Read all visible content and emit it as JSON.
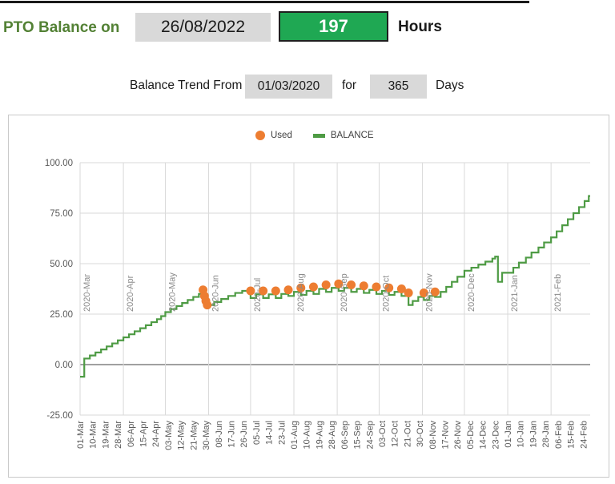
{
  "header": {
    "title_label": "PTO Balance on",
    "date_value": "26/08/2022",
    "balance_value": "197",
    "unit_label": "Hours"
  },
  "trend_controls": {
    "prefix_label": "Balance Trend From",
    "start_date_value": "01/03/2020",
    "middle_label": "for",
    "days_value": "365",
    "suffix_label": "Days"
  },
  "colors": {
    "title_green": "#538135",
    "cell_gray": "#d9d9d9",
    "value_box_green": "#1fa853",
    "value_box_text": "#ffffff",
    "balance_line_green": "#4e9b44",
    "used_dot_orange": "#ed7d31",
    "gridline": "#d9d9d9",
    "zero_axis": "#808080",
    "axis_text": "#595959",
    "month_text": "#8a8a8a",
    "chart_border": "#c9c9c9"
  },
  "chart_data": {
    "type": "line",
    "title": "",
    "legend": [
      {
        "label": "Used",
        "marker": "circle",
        "color": "#ed7d31"
      },
      {
        "label": "BALANCE",
        "marker": "dash",
        "color": "#4e9b44"
      }
    ],
    "legend_position": "top-center",
    "grid": true,
    "y_axis": {
      "min": -25,
      "max": 100,
      "step": 25,
      "ticks": [
        {
          "v": 100,
          "label": "100.00"
        },
        {
          "v": 75,
          "label": "75.00"
        },
        {
          "v": 50,
          "label": "50.00"
        },
        {
          "v": 25,
          "label": "25.00"
        },
        {
          "v": 0,
          "label": "0.00"
        },
        {
          "v": -25,
          "label": "-25.00"
        }
      ]
    },
    "x_axis": {
      "total_days": 365,
      "tick_interval_days": 9,
      "tick_labels": [
        "01-Mar",
        "10-Mar",
        "19-Mar",
        "28-Mar",
        "06-Apr",
        "15-Apr",
        "24-Apr",
        "03-May",
        "12-May",
        "21-May",
        "30-May",
        "08-Jun",
        "17-Jun",
        "26-Jun",
        "05-Jul",
        "14-Jul",
        "23-Jul",
        "01-Aug",
        "10-Aug",
        "19-Aug",
        "28-Aug",
        "06-Sep",
        "15-Sep",
        "24-Sep",
        "03-Oct",
        "12-Oct",
        "21-Oct",
        "30-Oct",
        "08-Nov",
        "17-Nov",
        "26-Nov",
        "05-Dec",
        "14-Dec",
        "23-Dec",
        "01-Jan",
        "10-Jan",
        "19-Jan",
        "28-Jan",
        "06-Feb",
        "15-Feb",
        "24-Feb"
      ],
      "month_labels": [
        "2020-Mar",
        "2020-Apr",
        "2020-May",
        "2020-Jun",
        "2020-Jul",
        "2020-Aug",
        "2020-Sep",
        "2020-Oct",
        "2020-Nov",
        "2020-Dec",
        "2021-Jan",
        "2021-Feb"
      ],
      "month_start_days": [
        0,
        31,
        61,
        92,
        122,
        153,
        184,
        214,
        245,
        275,
        306,
        337
      ]
    },
    "series": [
      {
        "name": "BALANCE",
        "type": "step-line",
        "color": "#4e9b44",
        "points": [
          [
            0,
            -6
          ],
          [
            3,
            3
          ],
          [
            7,
            4.5
          ],
          [
            11,
            6
          ],
          [
            15,
            7.5
          ],
          [
            19,
            9
          ],
          [
            23,
            10.5
          ],
          [
            27,
            12
          ],
          [
            31,
            13.5
          ],
          [
            35,
            15
          ],
          [
            39,
            16.5
          ],
          [
            43,
            18
          ],
          [
            47,
            19.5
          ],
          [
            51,
            21
          ],
          [
            55,
            22.5
          ],
          [
            58,
            24
          ],
          [
            61,
            26
          ],
          [
            65,
            27.5
          ],
          [
            69,
            29
          ],
          [
            73,
            30.5
          ],
          [
            77,
            32
          ],
          [
            81,
            33.5
          ],
          [
            85,
            35
          ],
          [
            88,
            37
          ],
          [
            89,
            34
          ],
          [
            90,
            31.5
          ],
          [
            91,
            29.5
          ],
          [
            96,
            31
          ],
          [
            101,
            32.5
          ],
          [
            106,
            34
          ],
          [
            111,
            35.5
          ],
          [
            116,
            36.5
          ],
          [
            122,
            33
          ],
          [
            126,
            34.8
          ],
          [
            130,
            36.5
          ],
          [
            131,
            33
          ],
          [
            135,
            34.8
          ],
          [
            139,
            36.5
          ],
          [
            140,
            33
          ],
          [
            144,
            35
          ],
          [
            148,
            37
          ],
          [
            149,
            34
          ],
          [
            153,
            36
          ],
          [
            157,
            38
          ],
          [
            158,
            34.5
          ],
          [
            162,
            36.5
          ],
          [
            166,
            38.5
          ],
          [
            167,
            35
          ],
          [
            171,
            37.5
          ],
          [
            175,
            39.5
          ],
          [
            176,
            36
          ],
          [
            180,
            38
          ],
          [
            184,
            40
          ],
          [
            185,
            36.5
          ],
          [
            189,
            38
          ],
          [
            193,
            39.5
          ],
          [
            194,
            36
          ],
          [
            198,
            37.5
          ],
          [
            202,
            39
          ],
          [
            203,
            35.5
          ],
          [
            207,
            37
          ],
          [
            211,
            38.5
          ],
          [
            212,
            35
          ],
          [
            216,
            36.5
          ],
          [
            220,
            38
          ],
          [
            221,
            34.5
          ],
          [
            225,
            36
          ],
          [
            229,
            37.5
          ],
          [
            230,
            34
          ],
          [
            234,
            35.5
          ],
          [
            235,
            29.5
          ],
          [
            238,
            31.5
          ],
          [
            242,
            33.5
          ],
          [
            245,
            35.5
          ],
          [
            246,
            32
          ],
          [
            250,
            34
          ],
          [
            253,
            36
          ],
          [
            254,
            33.5
          ],
          [
            258,
            36
          ],
          [
            262,
            38.5
          ],
          [
            266,
            41
          ],
          [
            270,
            43.5
          ],
          [
            275,
            46.5
          ],
          [
            280,
            48
          ],
          [
            285,
            49.5
          ],
          [
            290,
            51
          ],
          [
            295,
            52.5
          ],
          [
            297,
            53.5
          ],
          [
            299,
            41
          ],
          [
            302,
            45.5
          ],
          [
            310,
            48
          ],
          [
            314,
            50.5
          ],
          [
            319,
            53
          ],
          [
            323,
            55.5
          ],
          [
            328,
            58
          ],
          [
            332,
            60.5
          ],
          [
            337,
            63
          ],
          [
            341,
            66
          ],
          [
            345,
            69
          ],
          [
            349,
            72
          ],
          [
            353,
            75
          ],
          [
            357,
            78
          ],
          [
            361,
            81
          ],
          [
            364,
            83.5
          ]
        ]
      },
      {
        "name": "Used",
        "type": "scatter",
        "color": "#ed7d31",
        "points": [
          [
            88,
            37
          ],
          [
            89,
            34
          ],
          [
            90,
            31.5
          ],
          [
            91,
            29.5
          ],
          [
            122,
            36.5
          ],
          [
            131,
            36.5
          ],
          [
            140,
            36.5
          ],
          [
            149,
            37
          ],
          [
            158,
            38
          ],
          [
            167,
            38.5
          ],
          [
            176,
            39.5
          ],
          [
            185,
            40
          ],
          [
            194,
            39.5
          ],
          [
            203,
            39
          ],
          [
            212,
            38.5
          ],
          [
            221,
            38
          ],
          [
            230,
            37.5
          ],
          [
            235,
            35.5
          ],
          [
            246,
            35.5
          ],
          [
            254,
            36
          ]
        ]
      }
    ]
  }
}
